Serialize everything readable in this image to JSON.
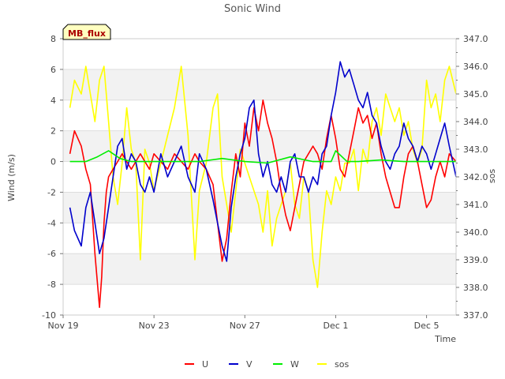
{
  "chart_data": {
    "type": "line",
    "title": "Sonic Wind",
    "badge": "MB_flux",
    "xlabel": "Time",
    "ylabel_left": "Wind (m/s)",
    "ylabel_right": "sos",
    "x_range_days": [
      0,
      17.3
    ],
    "x_ticks": [
      {
        "day": 0,
        "label": "Nov 19"
      },
      {
        "day": 4,
        "label": "Nov 23"
      },
      {
        "day": 8,
        "label": "Nov 27"
      },
      {
        "day": 12,
        "label": "Dec 1"
      },
      {
        "day": 16,
        "label": "Dec 5"
      }
    ],
    "ylim_left": [
      -10,
      8
    ],
    "yticks_left": [
      -10,
      -8,
      -6,
      -4,
      -2,
      0,
      2,
      4,
      6,
      8
    ],
    "ylim_right": [
      337.0,
      347.0
    ],
    "yticks_right": [
      337.0,
      338.0,
      339.0,
      340.0,
      341.0,
      342.0,
      343.0,
      344.0,
      345.0,
      346.0,
      347.0
    ],
    "series": [
      {
        "name": "U",
        "axis": "left",
        "color": "#ff0000",
        "x": [
          0.3,
          0.5,
          0.8,
          1.0,
          1.2,
          1.4,
          1.6,
          1.7,
          1.8,
          1.9,
          2.0,
          2.2,
          2.4,
          2.6,
          2.8,
          3.0,
          3.2,
          3.4,
          3.6,
          3.8,
          4.0,
          4.3,
          4.6,
          4.9,
          5.2,
          5.5,
          5.8,
          6.0,
          6.3,
          6.6,
          6.8,
          7.0,
          7.2,
          7.4,
          7.6,
          7.8,
          8.0,
          8.2,
          8.4,
          8.6,
          8.8,
          9.0,
          9.2,
          9.4,
          9.6,
          9.8,
          10.0,
          10.2,
          10.4,
          10.6,
          10.8,
          11.0,
          11.2,
          11.4,
          11.6,
          11.8,
          12.0,
          12.2,
          12.4,
          12.6,
          12.8,
          13.0,
          13.2,
          13.4,
          13.6,
          13.8,
          14.0,
          14.2,
          14.4,
          14.6,
          14.8,
          15.0,
          15.2,
          15.4,
          15.6,
          15.8,
          16.0,
          16.2,
          16.4,
          16.6,
          16.8,
          17.0,
          17.3
        ],
        "y": [
          0.5,
          2.0,
          1.0,
          -0.5,
          -1.5,
          -6.0,
          -9.5,
          -7.5,
          -4.0,
          -2.0,
          -1.0,
          -0.5,
          0.0,
          0.5,
          0.0,
          -0.5,
          0.0,
          0.5,
          0.0,
          -0.5,
          0.5,
          0.0,
          -0.5,
          0.5,
          0.0,
          -0.5,
          0.5,
          0.0,
          -0.5,
          -1.5,
          -4.0,
          -6.5,
          -5.0,
          -2.0,
          0.5,
          -1.0,
          2.5,
          1.0,
          3.5,
          2.0,
          4.0,
          2.5,
          1.5,
          0.0,
          -2.0,
          -3.5,
          -4.5,
          -3.0,
          -1.5,
          0.0,
          0.5,
          1.0,
          0.5,
          -0.5,
          1.5,
          3.0,
          1.5,
          -0.5,
          -1.0,
          0.5,
          2.0,
          3.5,
          2.5,
          3.0,
          1.5,
          2.5,
          0.5,
          -1.0,
          -2.0,
          -3.0,
          -3.0,
          -1.0,
          0.5,
          1.0,
          0.0,
          -1.5,
          -3.0,
          -2.5,
          -1.0,
          0.0,
          -1.0,
          0.5,
          0.0
        ]
      },
      {
        "name": "V",
        "axis": "left",
        "color": "#0000cc",
        "x": [
          0.3,
          0.5,
          0.8,
          1.0,
          1.2,
          1.4,
          1.6,
          1.8,
          2.0,
          2.2,
          2.4,
          2.6,
          2.8,
          3.0,
          3.2,
          3.4,
          3.6,
          3.8,
          4.0,
          4.3,
          4.6,
          4.9,
          5.2,
          5.5,
          5.8,
          6.0,
          6.3,
          6.6,
          6.8,
          7.0,
          7.2,
          7.4,
          7.6,
          7.8,
          8.0,
          8.2,
          8.4,
          8.6,
          8.8,
          9.0,
          9.2,
          9.4,
          9.6,
          9.8,
          10.0,
          10.2,
          10.4,
          10.6,
          10.8,
          11.0,
          11.2,
          11.4,
          11.6,
          11.8,
          12.0,
          12.2,
          12.4,
          12.6,
          12.8,
          13.0,
          13.2,
          13.4,
          13.6,
          13.8,
          14.0,
          14.2,
          14.4,
          14.6,
          14.8,
          15.0,
          15.2,
          15.4,
          15.6,
          15.8,
          16.0,
          16.2,
          16.4,
          16.6,
          16.8,
          17.0,
          17.3
        ],
        "y": [
          -3.0,
          -4.5,
          -5.5,
          -3.0,
          -2.0,
          -4.0,
          -6.0,
          -5.0,
          -3.0,
          -1.0,
          1.0,
          1.5,
          -0.5,
          0.5,
          0.0,
          -1.5,
          -2.0,
          -1.0,
          -2.0,
          0.5,
          -1.0,
          0.0,
          1.0,
          -1.0,
          -2.0,
          0.5,
          -0.5,
          -2.5,
          -4.0,
          -5.5,
          -6.5,
          -3.0,
          -1.0,
          0.5,
          1.5,
          3.5,
          4.0,
          0.5,
          -1.0,
          0.0,
          -1.5,
          -2.0,
          -1.0,
          -2.0,
          0.0,
          0.5,
          -1.0,
          -1.0,
          -2.0,
          -1.0,
          -1.5,
          0.5,
          1.0,
          3.0,
          4.5,
          6.5,
          5.5,
          6.0,
          5.0,
          4.0,
          3.5,
          4.5,
          3.0,
          2.5,
          1.0,
          0.0,
          -0.5,
          0.5,
          1.0,
          2.5,
          1.5,
          1.0,
          0.0,
          1.0,
          0.5,
          -0.5,
          0.5,
          1.5,
          2.5,
          1.0,
          -1.0
        ]
      },
      {
        "name": "W",
        "axis": "left",
        "color": "#00ee00",
        "x": [
          0.3,
          1.0,
          1.5,
          2.0,
          2.5,
          3.0,
          4.0,
          5.0,
          6.0,
          7.0,
          8.0,
          9.0,
          10.0,
          11.0,
          11.8,
          12.0,
          12.5,
          13.0,
          14.0,
          15.0,
          16.0,
          17.0,
          17.3
        ],
        "y": [
          0.0,
          0.0,
          0.3,
          0.7,
          0.2,
          0.0,
          0.0,
          0.0,
          0.0,
          0.2,
          0.0,
          -0.1,
          0.3,
          0.0,
          0.0,
          0.7,
          0.0,
          0.0,
          0.1,
          0.0,
          0.0,
          0.0,
          0.0
        ]
      },
      {
        "name": "sos",
        "axis": "right",
        "color": "#ffff00",
        "x": [
          0.3,
          0.5,
          0.8,
          1.0,
          1.2,
          1.4,
          1.6,
          1.8,
          2.0,
          2.2,
          2.4,
          2.6,
          2.8,
          3.0,
          3.2,
          3.4,
          3.6,
          3.8,
          4.0,
          4.3,
          4.6,
          4.9,
          5.2,
          5.5,
          5.8,
          6.0,
          6.3,
          6.6,
          6.8,
          7.0,
          7.2,
          7.4,
          7.6,
          7.8,
          8.0,
          8.2,
          8.4,
          8.6,
          8.8,
          9.0,
          9.2,
          9.4,
          9.6,
          9.8,
          10.0,
          10.2,
          10.4,
          10.6,
          10.8,
          11.0,
          11.2,
          11.4,
          11.6,
          11.8,
          12.0,
          12.2,
          12.4,
          12.6,
          12.8,
          13.0,
          13.2,
          13.4,
          13.6,
          13.8,
          14.0,
          14.2,
          14.4,
          14.6,
          14.8,
          15.0,
          15.2,
          15.4,
          15.6,
          15.8,
          16.0,
          16.2,
          16.4,
          16.6,
          16.8,
          17.0,
          17.3
        ],
        "y": [
          344.5,
          345.5,
          345.0,
          346.0,
          345.0,
          344.0,
          345.5,
          346.0,
          344.0,
          342.0,
          341.0,
          342.5,
          344.5,
          343.0,
          342.5,
          339.0,
          343.0,
          342.5,
          341.5,
          342.5,
          343.5,
          344.5,
          346.0,
          343.5,
          339.0,
          341.5,
          342.5,
          344.5,
          345.0,
          342.0,
          341.0,
          340.0,
          341.5,
          343.0,
          342.5,
          342.0,
          341.5,
          341.0,
          340.0,
          341.5,
          339.5,
          340.5,
          341.0,
          341.5,
          342.5,
          341.0,
          340.5,
          342.0,
          341.5,
          339.0,
          338.0,
          340.0,
          341.5,
          341.0,
          342.0,
          341.5,
          342.5,
          342.5,
          343.0,
          341.5,
          343.0,
          342.5,
          344.0,
          344.5,
          343.5,
          345.0,
          344.5,
          344.0,
          344.5,
          343.5,
          344.0,
          343.0,
          342.5,
          343.0,
          345.5,
          344.5,
          345.0,
          344.0,
          345.5,
          346.0,
          345.0
        ]
      }
    ]
  }
}
